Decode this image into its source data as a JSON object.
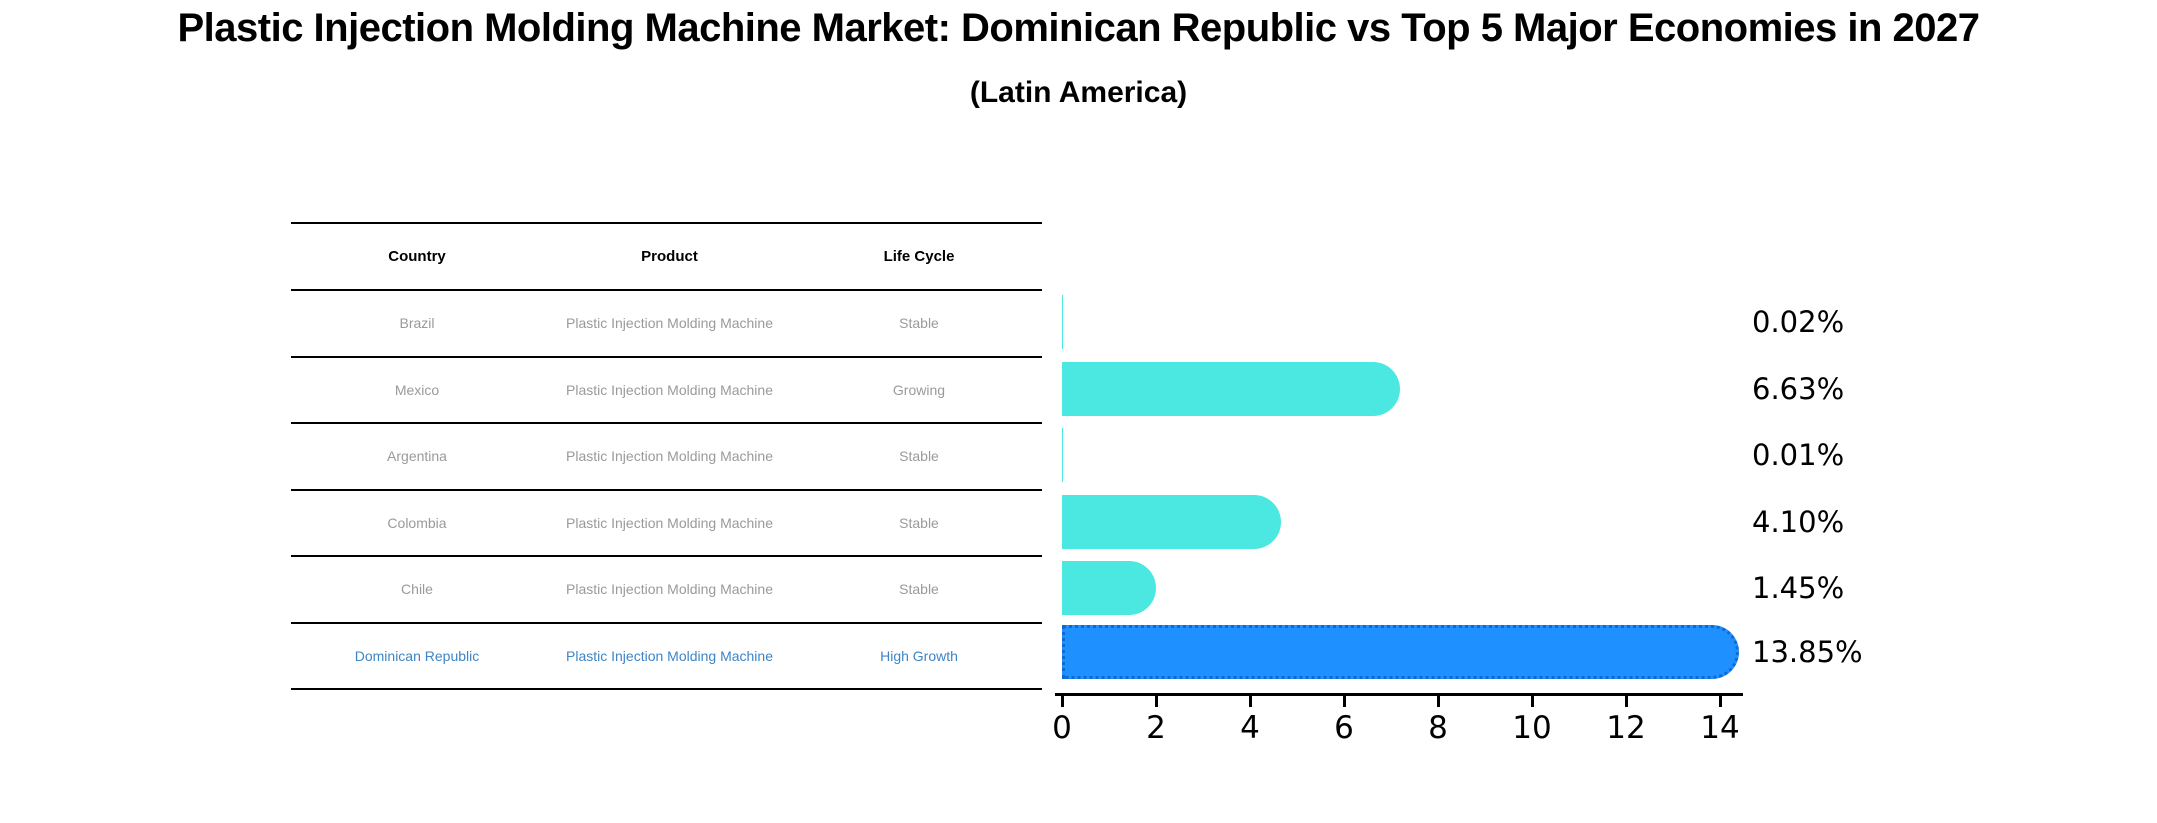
{
  "title": "Plastic Injection Molding Machine Market: Dominican Republic vs Top 5 Major Economies in 2027",
  "subtitle": "(Latin America)",
  "table": {
    "headers": [
      "Country",
      "Product",
      "Life Cycle"
    ],
    "rows": [
      {
        "country": "Brazil",
        "product": "Plastic Injection Molding Machine",
        "life_cycle": "Stable",
        "highlighted": false
      },
      {
        "country": "Mexico",
        "product": "Plastic Injection Molding Machine",
        "life_cycle": "Growing",
        "highlighted": false
      },
      {
        "country": "Argentina",
        "product": "Plastic Injection Molding Machine",
        "life_cycle": "Stable",
        "highlighted": false
      },
      {
        "country": "Colombia",
        "product": "Plastic Injection Molding Machine",
        "life_cycle": "Stable",
        "highlighted": false
      },
      {
        "country": "Chile",
        "product": "Plastic Injection Molding Machine",
        "life_cycle": "Stable",
        "highlighted": false
      },
      {
        "country": "Dominican Republic",
        "product": "Plastic Injection Molding Machine",
        "life_cycle": "High Growth",
        "highlighted": true
      }
    ]
  },
  "chart_data": {
    "type": "bar",
    "orientation": "horizontal",
    "title": "Plastic Injection Molding Machine Market: Dominican Republic vs Top 5 Major Economies in 2027",
    "subtitle": "(Latin America)",
    "categories": [
      "Brazil",
      "Mexico",
      "Argentina",
      "Colombia",
      "Chile",
      "Dominican Republic"
    ],
    "values": [
      0.02,
      6.63,
      0.01,
      4.1,
      1.45,
      13.85
    ],
    "value_labels": [
      "0.02%",
      "6.63%",
      "0.01%",
      "4.10%",
      "1.45%",
      "13.85%"
    ],
    "xlabel": "",
    "ylabel": "",
    "xlim": [
      0,
      14
    ],
    "xticks": [
      0,
      2,
      4,
      6,
      8,
      10,
      12,
      14
    ],
    "grid": false,
    "legend": "none",
    "bar_color": "#4BE8E1",
    "highlight_bar_color": "#1E90FF",
    "highlight_index": 5
  },
  "colors": {
    "background": "#FFFFFF",
    "bar_cyan": "#4BE8E1",
    "bar_blue": "#1E90FF",
    "bar_blue_border": "#0E6AD1",
    "highlight_text": "#3D85C6",
    "table_text": "#9A9A9A",
    "heading_text": "#000000",
    "axis": "#000000"
  }
}
